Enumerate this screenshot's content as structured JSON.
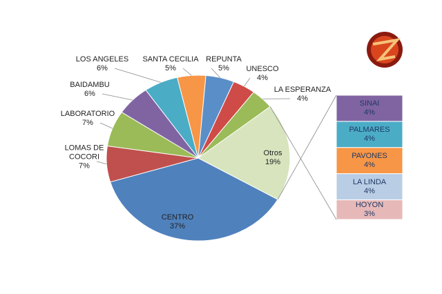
{
  "chart_data": {
    "type": "pie-of-bar",
    "categories": [
      "CENTRO",
      "LOMAS DE COCORI",
      "LABORATORIO",
      "BAIDAMBU",
      "LOS ANGELES",
      "SANTA CECILIA",
      "REPUNTA",
      "UNESCO",
      "LA ESPERANZA",
      "Otros"
    ],
    "values": [
      37,
      7,
      7,
      6,
      6,
      5,
      5,
      4,
      4,
      19
    ],
    "value_labels": [
      "37%",
      "7%",
      "7%",
      "6%",
      "6%",
      "5%",
      "5%",
      "4%",
      "4%",
      "19%"
    ],
    "colors": [
      "#4f81bd",
      "#c0504d",
      "#9bbb59",
      "#8064a2",
      "#4bacc6",
      "#f79646",
      "#5a8ec8",
      "#cf4b47",
      "#9bbb59",
      "#d7e4bd"
    ],
    "bar": {
      "categories": [
        "SINAI",
        "PALMARES",
        "PAVONES",
        "LA LINDA",
        "HOYON"
      ],
      "values": [
        4,
        4,
        4,
        4,
        3
      ],
      "value_labels": [
        "4%",
        "4%",
        "4%",
        "4%",
        "3%"
      ],
      "colors": [
        "#8064a2",
        "#4bacc6",
        "#f79646",
        "#b9cde5",
        "#e6b9b8"
      ]
    }
  }
}
